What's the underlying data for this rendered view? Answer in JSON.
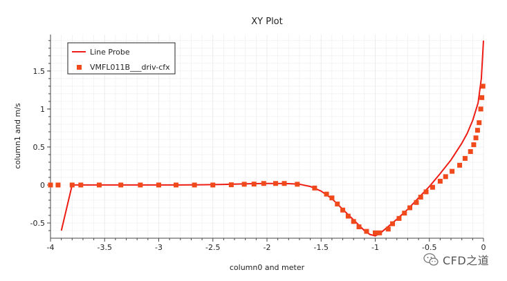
{
  "watermark": {
    "text": "CFD之道"
  },
  "chart_data": {
    "type": "line",
    "title": "XY Plot",
    "xlabel": "column0 and meter",
    "ylabel": "column1 and m/s",
    "xlim": [
      -4,
      0
    ],
    "ylim": [
      -0.7,
      1.98
    ],
    "x_ticks": [
      -4,
      -3.5,
      -3,
      -2.5,
      -2,
      -1.5,
      -1,
      -0.5,
      0
    ],
    "x_tick_labels": [
      "-4",
      "-3.5",
      "-3",
      "-2.5",
      "-2",
      "-1.5",
      "-1",
      "-0.5",
      "0"
    ],
    "y_ticks": [
      -0.5,
      0,
      0.5,
      1,
      1.5
    ],
    "y_tick_labels": [
      "-0.5",
      "0",
      "0.5",
      "1",
      "1.5"
    ],
    "grid": true,
    "legend_position": "top-left",
    "colors": {
      "line": "#ee1c14",
      "markers": "#f04a1c",
      "grid": "#ececec"
    },
    "series": [
      {
        "name": "Line Probe",
        "kind": "line",
        "x": [
          -3.9,
          -3.8,
          -3.6,
          -3.4,
          -3.2,
          -3.0,
          -2.8,
          -2.6,
          -2.4,
          -2.2,
          -2.0,
          -1.9,
          -1.8,
          -1.7,
          -1.6,
          -1.5,
          -1.4,
          -1.3,
          -1.2,
          -1.1,
          -1.05,
          -1.0,
          -0.95,
          -0.9,
          -0.8,
          -0.7,
          -0.6,
          -0.5,
          -0.4,
          -0.3,
          -0.2,
          -0.15,
          -0.1,
          -0.05,
          -0.02,
          0.0
        ],
        "y": [
          -0.6,
          0.0,
          0.0,
          0.0,
          0.0,
          0.0,
          0.0,
          0.003,
          0.008,
          0.015,
          0.02,
          0.02,
          0.018,
          0.01,
          -0.02,
          -0.08,
          -0.18,
          -0.32,
          -0.46,
          -0.6,
          -0.65,
          -0.67,
          -0.63,
          -0.57,
          -0.45,
          -0.32,
          -0.17,
          -0.02,
          0.15,
          0.33,
          0.55,
          0.68,
          0.85,
          1.08,
          1.4,
          1.9
        ]
      },
      {
        "name": "VMFL011B___driv-cfx",
        "kind": "scatter",
        "x": [
          -4.0,
          -3.93,
          -3.8,
          -3.72,
          -3.55,
          -3.35,
          -3.17,
          -3.0,
          -2.84,
          -2.67,
          -2.5,
          -2.33,
          -2.21,
          -2.12,
          -2.03,
          -1.92,
          -1.84,
          -1.72,
          -1.56,
          -1.45,
          -1.4,
          -1.35,
          -1.3,
          -1.25,
          -1.2,
          -1.15,
          -1.08,
          -1.0,
          -0.96,
          -0.88,
          -0.84,
          -0.78,
          -0.73,
          -0.68,
          -0.62,
          -0.58,
          -0.53,
          -0.47,
          -0.4,
          -0.35,
          -0.29,
          -0.22,
          -0.17,
          -0.12,
          -0.09,
          -0.07,
          -0.055,
          -0.04,
          -0.025,
          -0.015,
          -0.005
        ],
        "y": [
          0.0,
          0.0,
          0.0,
          0.0,
          0.0,
          0.0,
          0.0,
          0.0,
          0.0,
          0.0,
          0.0,
          0.003,
          0.01,
          0.012,
          0.02,
          0.02,
          0.02,
          0.01,
          -0.04,
          -0.12,
          -0.17,
          -0.25,
          -0.33,
          -0.41,
          -0.48,
          -0.55,
          -0.61,
          -0.63,
          -0.63,
          -0.58,
          -0.51,
          -0.44,
          -0.37,
          -0.3,
          -0.23,
          -0.16,
          -0.09,
          -0.03,
          0.05,
          0.11,
          0.18,
          0.26,
          0.35,
          0.44,
          0.53,
          0.62,
          0.72,
          0.82,
          1.0,
          1.15,
          1.3
        ]
      }
    ]
  }
}
